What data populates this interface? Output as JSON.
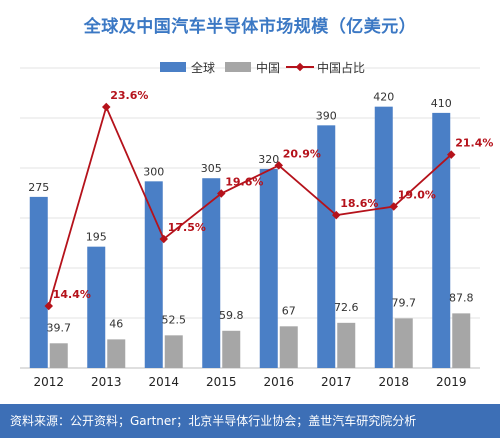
{
  "chart_data": {
    "type": "bar",
    "title": "全球及中国汽车半导体市场规模（亿美元）",
    "categories": [
      "2012",
      "2013",
      "2014",
      "2015",
      "2016",
      "2017",
      "2018",
      "2019"
    ],
    "series": [
      {
        "name": "全球",
        "kind": "bar",
        "color": "#4a7fc6",
        "values": [
          275,
          195,
          300,
          305,
          320,
          390,
          420,
          410
        ],
        "labels": [
          "275",
          "195",
          "300",
          "305",
          "320",
          "390",
          "420",
          "410"
        ]
      },
      {
        "name": "中国",
        "kind": "bar",
        "color": "#a6a6a6",
        "values": [
          39.7,
          46,
          52.5,
          59.8,
          67,
          72.6,
          79.7,
          87.8
        ],
        "labels": [
          "39.7",
          "46",
          "52.5",
          "59.8",
          "67",
          "72.6",
          "79.7",
          "87.8"
        ]
      },
      {
        "name": "中国占比",
        "kind": "line",
        "color": "#b5121b",
        "values": [
          14.4,
          23.6,
          17.5,
          19.6,
          20.9,
          18.6,
          19.0,
          21.4
        ],
        "labels": [
          "14.4%",
          "23.6%",
          "17.5%",
          "19.6%",
          "20.9%",
          "18.6%",
          "19.0%",
          "21.4%"
        ]
      }
    ],
    "ylim": [
      0,
      450
    ],
    "y2lim": [
      0,
      30
    ],
    "grid": true,
    "legend": "top"
  },
  "source_text": "资料来源：公开资料；Gartner；北京半导体行业协会；盖世汽车研究院分析"
}
